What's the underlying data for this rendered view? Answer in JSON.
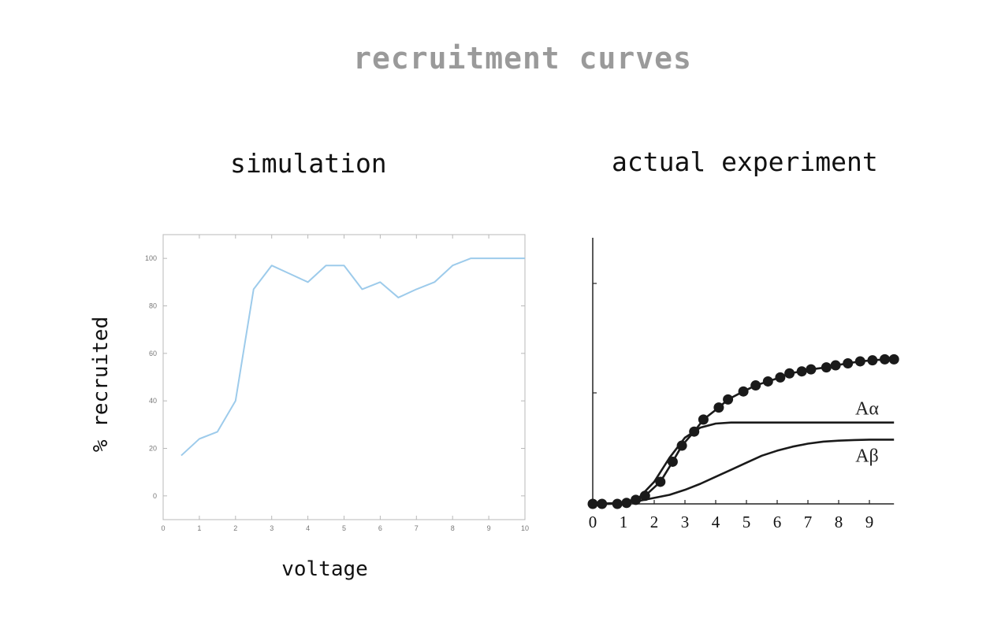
{
  "page": {
    "title": "recruitment curves"
  },
  "chart_data": [
    {
      "type": "line",
      "title": "simulation",
      "xlabel": "voltage",
      "ylabel": "% recruited",
      "xlim": [
        0,
        10
      ],
      "ylim": [
        -10,
        110
      ],
      "xticks": [
        "0",
        "1",
        "2",
        "3",
        "4",
        "5",
        "6",
        "7",
        "8",
        "9",
        "10"
      ],
      "yticks": [
        "0",
        "20",
        "40",
        "60",
        "80",
        "100"
      ],
      "series": [
        {
          "color": "#9dcbeb",
          "x": [
            0.5,
            1,
            1.5,
            2,
            2.5,
            3,
            3.5,
            4,
            4.5,
            5,
            5.5,
            6,
            6.5,
            7,
            7.5,
            8,
            8.5,
            9,
            9.5,
            10
          ],
          "y": [
            17,
            24,
            27,
            40,
            87,
            97,
            93.5,
            90,
            97,
            97,
            87,
            90,
            83.5,
            87,
            90,
            97,
            100,
            100,
            100,
            100
          ]
        }
      ]
    },
    {
      "type": "line",
      "title": "actual experiment",
      "xlabel": "",
      "ylabel": "",
      "xlim": [
        0,
        9.8
      ],
      "ylim": [
        0,
        100
      ],
      "xticks": [
        "0",
        "1",
        "2",
        "3",
        "4",
        "5",
        "6",
        "7",
        "8",
        "9"
      ],
      "series": [
        {
          "name": "Aα",
          "x": [
            0,
            0.5,
            1,
            1.5,
            2,
            2.5,
            3,
            3.5,
            4,
            4.5,
            5,
            6,
            7,
            8,
            9,
            9.8
          ],
          "y": [
            0,
            0,
            0.5,
            3,
            11,
            23,
            33,
            38,
            40,
            40.5,
            40.5,
            40.5,
            40.5,
            40.5,
            40.5,
            40.5
          ]
        },
        {
          "name": "Aβ",
          "x": [
            0,
            1,
            1.5,
            2,
            2.5,
            3,
            3.5,
            4,
            4.5,
            5,
            5.5,
            6,
            6.5,
            7,
            7.5,
            8,
            8.5,
            9,
            9.8
          ],
          "y": [
            0,
            0.5,
            1.5,
            3,
            4.5,
            7,
            10,
            13.5,
            17,
            20.5,
            24,
            26.5,
            28.5,
            30,
            31,
            31.5,
            31.8,
            32,
            32
          ]
        },
        {
          "name": "",
          "markers": true,
          "x": [
            0,
            0.3,
            0.8,
            1.1,
            1.4,
            1.7,
            2.2,
            2.6,
            2.9,
            3.3,
            3.6,
            4.1,
            4.4,
            4.9,
            5.3,
            5.7,
            6.1,
            6.4,
            6.8,
            7.1,
            7.6,
            7.9,
            8.3,
            8.7,
            9.1,
            9.5,
            9.8
          ],
          "y": [
            0,
            0,
            0,
            0.5,
            2,
            4,
            11,
            21,
            29,
            36,
            42,
            48,
            52,
            56,
            59,
            61,
            63,
            65,
            66,
            67,
            68,
            69,
            70,
            71,
            71.5,
            72,
            72
          ]
        }
      ]
    }
  ]
}
